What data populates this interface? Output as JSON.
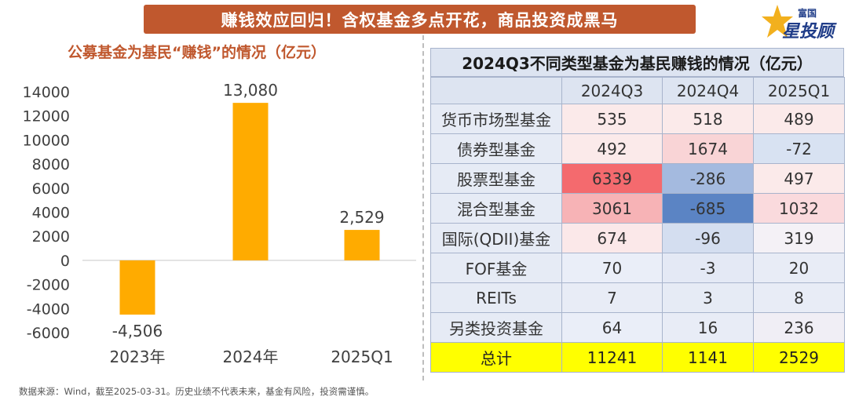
{
  "header": {
    "banner": "赚钱效应回归！含权基金多点开花，商品投资成黑马",
    "logo_small": "富国",
    "logo_big": "星投顾"
  },
  "chart_data": [
    {
      "type": "bar",
      "title": "公募基金为基民“赚钱”的情况（亿元）",
      "categories": [
        "2023年",
        "2024年",
        "2025Q1"
      ],
      "values": [
        -4506,
        13080,
        2529
      ],
      "value_labels": [
        "-4,506",
        "13,080",
        "2,529"
      ],
      "ylim": [
        -6000,
        14000
      ],
      "yticks": [
        "14000",
        "12000",
        "10000",
        "8000",
        "6000",
        "4000",
        "2000",
        "0",
        "-2000",
        "-4000",
        "-6000"
      ],
      "bar_color": "#ffab00",
      "grid": false
    },
    {
      "type": "table",
      "title": "2024Q3不同类型基金为基民赚钱的情况（亿元）",
      "columns": [
        "",
        "2024Q3",
        "2024Q4",
        "2025Q1"
      ],
      "rows": [
        {
          "label": "货币市场型基金",
          "cells": [
            {
              "v": "535",
              "bg": "#fbeaea"
            },
            {
              "v": "518",
              "bg": "#fbeaea"
            },
            {
              "v": "489",
              "bg": "#fbeaea"
            }
          ]
        },
        {
          "label": "债券型基金",
          "cells": [
            {
              "v": "492",
              "bg": "#fbeaea"
            },
            {
              "v": "1674",
              "bg": "#f9d4d6"
            },
            {
              "v": "-72",
              "bg": "#d8e2f2"
            }
          ]
        },
        {
          "label": "股票型基金",
          "cells": [
            {
              "v": "6339",
              "bg": "#f46a6e"
            },
            {
              "v": "-286",
              "bg": "#a4badf"
            },
            {
              "v": "497",
              "bg": "#fbeaea"
            }
          ]
        },
        {
          "label": "混合型基金",
          "cells": [
            {
              "v": "3061",
              "bg": "#f7b3b6"
            },
            {
              "v": "-685",
              "bg": "#5b84c4"
            },
            {
              "v": "1032",
              "bg": "#fadadd"
            }
          ]
        },
        {
          "label": "国际(QDII)基金",
          "cells": [
            {
              "v": "674",
              "bg": "#fbe8e9"
            },
            {
              "v": "-96",
              "bg": "#d4def0"
            },
            {
              "v": "319",
              "bg": "#f4f1f6"
            }
          ]
        },
        {
          "label": "FOF基金",
          "cells": [
            {
              "v": "70",
              "bg": "#eaeef8"
            },
            {
              "v": "-3",
              "bg": "#e4e9f5"
            },
            {
              "v": "20",
              "bg": "#e8ecf6"
            }
          ]
        },
        {
          "label": "REITs",
          "cells": [
            {
              "v": "7",
              "bg": "#e8ecf6"
            },
            {
              "v": "3",
              "bg": "#e6ebf5"
            },
            {
              "v": "8",
              "bg": "#e8ecf6"
            }
          ]
        },
        {
          "label": "另类投资基金",
          "cells": [
            {
              "v": "64",
              "bg": "#eaeef8"
            },
            {
              "v": "16",
              "bg": "#e8ecf6"
            },
            {
              "v": "236",
              "bg": "#f0eef5"
            }
          ]
        }
      ],
      "total": {
        "label": "总计",
        "cells": [
          "11241",
          "1141",
          "2529"
        ],
        "bg": "#ffff00"
      },
      "header_bg": "#dde4f1",
      "label_bg": "#e6ebf5"
    }
  ],
  "footer": {
    "source": "数据来源：Wind，截至2025-03-31。历史业绩不代表未来，基金有风险，投资需谨慎。"
  }
}
